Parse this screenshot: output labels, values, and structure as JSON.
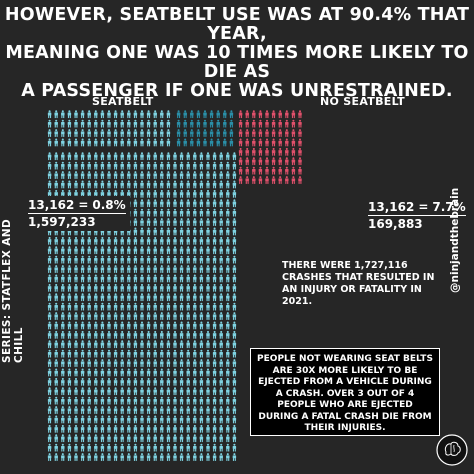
{
  "headline": [
    "HOWEVER, SEATBELT USE WAS AT 90.4% THAT YEAR,",
    "MEANING ONE WAS 10 TIMES MORE LIKELY TO DIE AS",
    "A PASSENGER IF ONE WAS UNRESTRAINED."
  ],
  "series_label": "SERIES: STATFLEX AND CHILL",
  "handle": "@ninjandthebrain",
  "crash_note": "THERE WERE 1,727,116 CRASHES THAT RESULTED IN AN INJURY OR FATALITY IN 2021.",
  "info_box": "PEOPLE NOT WEARING SEAT BELTS ARE 30X MORE LIKELY TO BE EJECTED FROM A VEHICLE DURING A CRASH. OVER 3 OUT OF 4 PEOPLE WHO ARE EJECTED DURING A FATAL CRASH DIE FROM THEIR INJURIES.",
  "colors": {
    "background": "#262626",
    "seatbelt": "#7fd3e2",
    "seatbelt_deaths": "#2a8fa8",
    "no_seatbelt": "#e0506b"
  },
  "icon": "person-icon",
  "chart_data": {
    "type": "pictograph",
    "groups": [
      {
        "label": "SEATBELT",
        "deaths": "13,162",
        "total": "1,597,233",
        "rate": "0.8%"
      },
      {
        "label": "NO SEATBELT",
        "deaths": "13,162",
        "total": "169,883",
        "rate": "7.7%"
      }
    ]
  }
}
